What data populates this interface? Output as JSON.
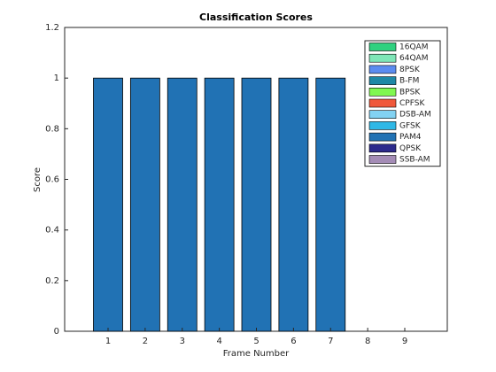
{
  "chart_data": {
    "type": "stacked-bar",
    "title": "Classification Scores",
    "x_label": "Frame Number",
    "y_label": "Score",
    "categories": [
      "1",
      "2",
      "3",
      "4",
      "5",
      "6",
      "7",
      "8",
      "9"
    ],
    "ylim": [
      0,
      1.2
    ],
    "yticks": [
      0,
      0.2,
      0.4,
      0.6,
      0.8,
      1,
      1.2
    ],
    "legend_position": "top-right",
    "series": [
      {
        "name": "16QAM",
        "color": "#2fd17f",
        "values": [
          0,
          0,
          0,
          0,
          0,
          0,
          0,
          0,
          0
        ]
      },
      {
        "name": "64QAM",
        "color": "#7fe6b8",
        "values": [
          0,
          0,
          0,
          0,
          0,
          0,
          0,
          0,
          0
        ]
      },
      {
        "name": "8PSK",
        "color": "#5b8cf0",
        "values": [
          0,
          0,
          0,
          0,
          0,
          0,
          0,
          0,
          0
        ]
      },
      {
        "name": "B-FM",
        "color": "#1e88a6",
        "values": [
          0,
          0,
          0,
          0,
          0,
          0,
          0,
          0,
          0
        ]
      },
      {
        "name": "BPSK",
        "color": "#80f850",
        "values": [
          0,
          0,
          0,
          0,
          0,
          0,
          0,
          0,
          0
        ]
      },
      {
        "name": "CPFSK",
        "color": "#f0583a",
        "values": [
          0,
          0,
          0,
          0,
          0,
          0,
          0,
          0,
          0
        ]
      },
      {
        "name": "DSB-AM",
        "color": "#82d2f2",
        "values": [
          0,
          0,
          0,
          0,
          0,
          0,
          0,
          0,
          0
        ]
      },
      {
        "name": "GFSK",
        "color": "#2fb8e6",
        "values": [
          0,
          0,
          0,
          0,
          0,
          0,
          0,
          0,
          0
        ]
      },
      {
        "name": "PAM4",
        "color": "#2172b4",
        "values": [
          1,
          1,
          1,
          1,
          1,
          1,
          1,
          0,
          0
        ]
      },
      {
        "name": "QPSK",
        "color": "#2c2a8c",
        "values": [
          0,
          0,
          0,
          0,
          0,
          0,
          0,
          0,
          0
        ]
      },
      {
        "name": "SSB-AM",
        "color": "#a48cb6",
        "values": [
          0,
          0,
          0,
          0,
          0,
          0,
          0,
          0,
          0
        ]
      }
    ]
  }
}
